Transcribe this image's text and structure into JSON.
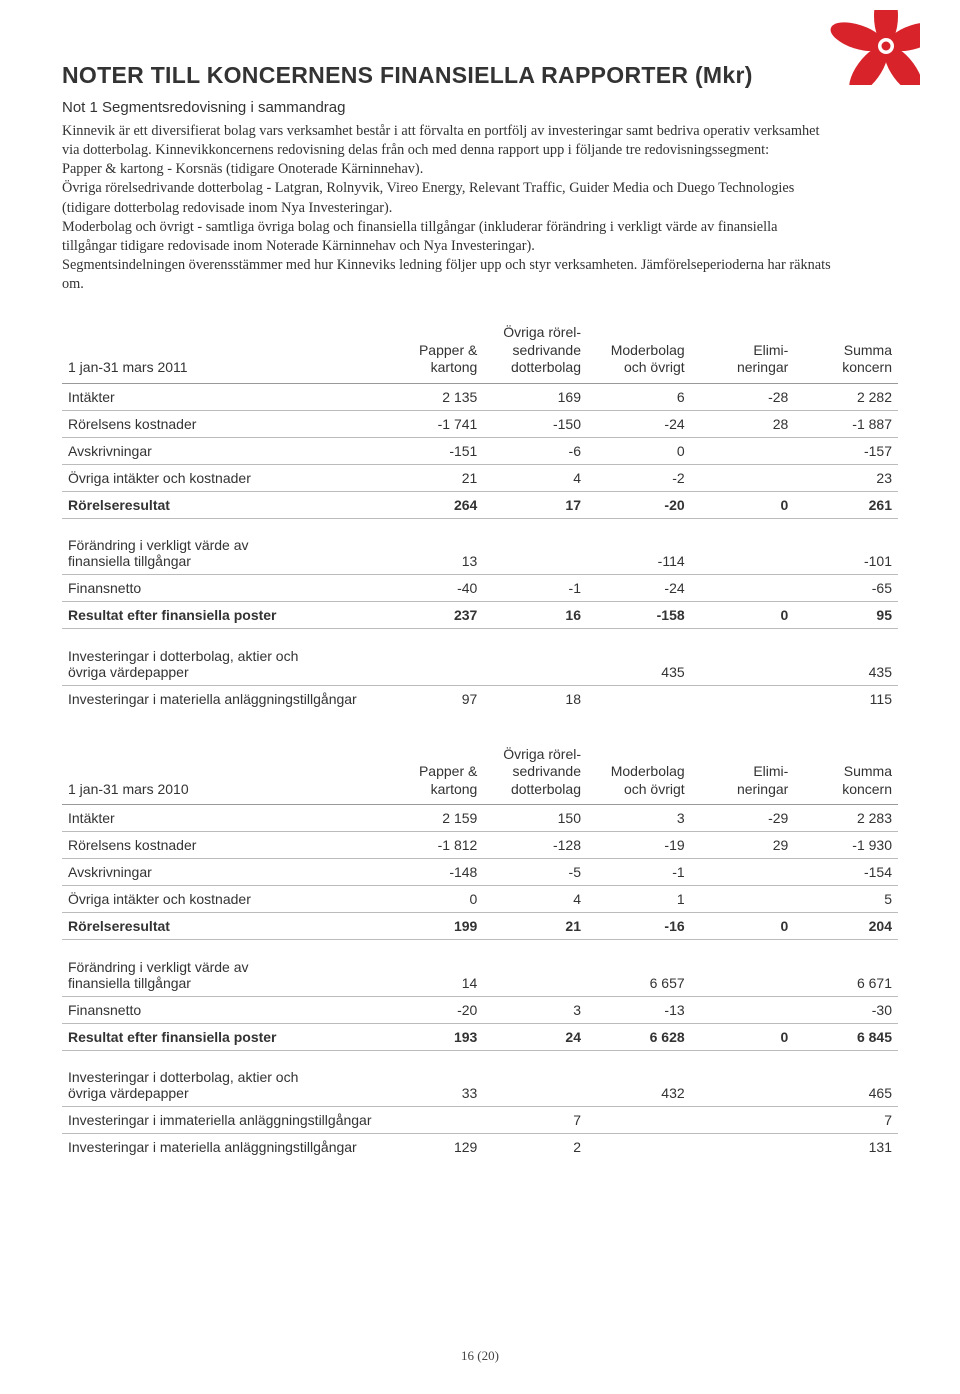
{
  "logo": {
    "petal_color": "#d8232a",
    "dot_color": "#d8232a"
  },
  "title": "NOTER TILL KONCERNENS FINANSIELLA RAPPORTER (Mkr)",
  "subtitle": "Not 1 Segmentsredovisning i sammandrag",
  "body": "Kinnevik är ett diversifierat bolag vars verksamhet består i att förvalta en portfölj av investeringar samt bedriva operativ verksamhet via dotterbolag. Kinnevikkoncernens redovisning delas från och med denna rapport upp i följande tre redovisningssegment:\nPapper & kartong - Korsnäs (tidigare Onoterade Kärninnehav).\nÖvriga rörelsedrivande dotterbolag - Latgran, Rolnyvik, Vireo Energy,  Relevant Traffic, Guider Media och Duego Technologies (tidigare dotterbolag redovisade inom Nya Investeringar).\nModerbolag och övrigt - samtliga övriga bolag och finansiella tillgångar (inkluderar förändring i verkligt värde av finansiella tillgångar tidigare redovisade inom Noterade Kärninnehav och Nya Investeringar).\nSegmentsindelningen överensstämmer med hur Kinneviks ledning följer upp och styr verksamheten. Jämförelseperioderna har räknats om.",
  "columns": {
    "c1": "Papper &\nkartong",
    "c2": "Övriga rörel-\nsedrivande\ndotterbolag",
    "c3": "Moderbolag\noch övrigt",
    "c4": "Elimi-\nneringar",
    "c5": "Summa\nkoncern"
  },
  "t1": {
    "period": "1 jan-31 mars 2011",
    "rows": [
      {
        "label": "Intäkter",
        "v": [
          "2 135",
          "169",
          "6",
          "-28",
          "2 282"
        ]
      },
      {
        "label": "Rörelsens kostnader",
        "v": [
          "-1 741",
          "-150",
          "-24",
          "28",
          "-1 887"
        ]
      },
      {
        "label": "Avskrivningar",
        "v": [
          "-151",
          "-6",
          "0",
          "",
          "-157"
        ]
      },
      {
        "label": "Övriga intäkter och kostnader",
        "v": [
          "21",
          "4",
          "-2",
          "",
          "23"
        ]
      },
      {
        "label": "Rörelseresultat",
        "v": [
          "264",
          "17",
          "-20",
          "0",
          "261"
        ],
        "bold": true
      },
      {
        "spacer": true
      },
      {
        "label": "Förändring i verkligt värde av finansiella tillgångar",
        "v": [
          "13",
          "",
          "-114",
          "",
          "-101"
        ],
        "multi": true
      },
      {
        "label": "Finansnetto",
        "v": [
          "-40",
          "-1",
          "-24",
          "",
          "-65"
        ]
      },
      {
        "label": "Resultat efter finansiella poster",
        "v": [
          "237",
          "16",
          "-158",
          "0",
          "95"
        ],
        "bold": true
      },
      {
        "spacer": true
      },
      {
        "label": "Investeringar i dotterbolag, aktier och övriga värdepapper",
        "v": [
          "",
          "",
          "435",
          "",
          "435"
        ],
        "multi": true
      },
      {
        "label": "Investeringar i materiella anläggningstillgångar",
        "v": [
          "97",
          "18",
          "",
          "",
          "115"
        ],
        "nob": true
      }
    ]
  },
  "t2": {
    "period": "1 jan-31 mars 2010",
    "rows": [
      {
        "label": "Intäkter",
        "v": [
          "2 159",
          "150",
          "3",
          "-29",
          "2 283"
        ]
      },
      {
        "label": "Rörelsens kostnader",
        "v": [
          "-1 812",
          "-128",
          "-19",
          "29",
          "-1 930"
        ]
      },
      {
        "label": "Avskrivningar",
        "v": [
          "-148",
          "-5",
          "-1",
          "",
          "-154"
        ]
      },
      {
        "label": "Övriga intäkter och kostnader",
        "v": [
          "0",
          "4",
          "1",
          "",
          "5"
        ]
      },
      {
        "label": "Rörelseresultat",
        "v": [
          "199",
          "21",
          "-16",
          "0",
          "204"
        ],
        "bold": true
      },
      {
        "spacer": true
      },
      {
        "label": "Förändring i verkligt värde av finansiella tillgångar",
        "v": [
          "14",
          "",
          "6 657",
          "",
          "6 671"
        ],
        "multi": true
      },
      {
        "label": "Finansnetto",
        "v": [
          "-20",
          "3",
          "-13",
          "",
          "-30"
        ]
      },
      {
        "label": "Resultat efter finansiella poster",
        "v": [
          "193",
          "24",
          "6 628",
          "0",
          "6 845"
        ],
        "bold": true
      },
      {
        "spacer": true
      },
      {
        "label": "Investeringar i dotterbolag, aktier och övriga värdepapper",
        "v": [
          "33",
          "",
          "432",
          "",
          "465"
        ],
        "multi": true
      },
      {
        "label": "Investeringar i immateriella anläggningstillgångar",
        "v": [
          "",
          "7",
          "",
          "",
          "7"
        ]
      },
      {
        "label": "Investeringar i materiella anläggningstillgångar",
        "v": [
          "129",
          "2",
          "",
          "",
          "131"
        ],
        "nob": true
      }
    ]
  },
  "page_num": "16 (20)"
}
